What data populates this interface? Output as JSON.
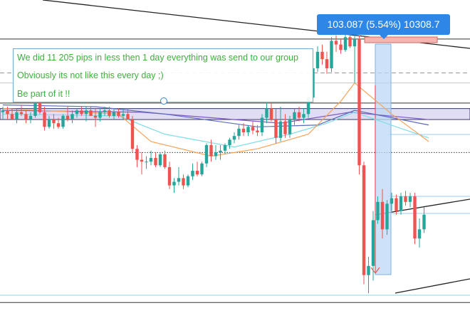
{
  "tooltip": {
    "text": "103.087 (5.54%) 10308.7"
  },
  "annotation": {
    "lines": [
      "We did 11 205 pips in less then 1 day everything was send to our group",
      "Obviously its not like this every day ;)",
      "Be part of it !!"
    ]
  },
  "colors": {
    "bull": "#26a69a",
    "bear": "#ef5350",
    "annotation_text": "#3fae3f",
    "tooltip_bg": "#2e86e6",
    "zone_fill": "#d9d4f0",
    "ma_orange": "#f7a35c",
    "ma_cyan": "#7fdde6",
    "ma_blue": "#5c6bc0",
    "ma_purple": "#7e57c2"
  },
  "chart_data": {
    "type": "candlestick",
    "title": "",
    "xlabel": "",
    "ylabel": "",
    "ylim": [
      -40,
      100
    ],
    "candles": [
      {
        "o": 64,
        "h": 67,
        "l": 60,
        "c": 65
      },
      {
        "o": 65,
        "h": 67,
        "l": 60,
        "c": 63
      },
      {
        "o": 63,
        "h": 66,
        "l": 60,
        "c": 60
      },
      {
        "o": 60,
        "h": 66,
        "l": 58,
        "c": 64
      },
      {
        "o": 64,
        "h": 68,
        "l": 62,
        "c": 63
      },
      {
        "o": 63,
        "h": 65,
        "l": 58,
        "c": 60
      },
      {
        "o": 60,
        "h": 64,
        "l": 58,
        "c": 62
      },
      {
        "o": 62,
        "h": 70,
        "l": 61,
        "c": 69
      },
      {
        "o": 69,
        "h": 72,
        "l": 63,
        "c": 64
      },
      {
        "o": 64,
        "h": 67,
        "l": 54,
        "c": 56
      },
      {
        "o": 56,
        "h": 62,
        "l": 55,
        "c": 60
      },
      {
        "o": 60,
        "h": 63,
        "l": 55,
        "c": 58
      },
      {
        "o": 58,
        "h": 61,
        "l": 55,
        "c": 56
      },
      {
        "o": 56,
        "h": 63,
        "l": 55,
        "c": 62
      },
      {
        "o": 62,
        "h": 67,
        "l": 59,
        "c": 60
      },
      {
        "o": 60,
        "h": 65,
        "l": 58,
        "c": 63
      },
      {
        "o": 63,
        "h": 66,
        "l": 61,
        "c": 65
      },
      {
        "o": 65,
        "h": 67,
        "l": 62,
        "c": 63
      },
      {
        "o": 63,
        "h": 67,
        "l": 59,
        "c": 65
      },
      {
        "o": 65,
        "h": 67,
        "l": 62,
        "c": 62
      },
      {
        "o": 62,
        "h": 66,
        "l": 56,
        "c": 61
      },
      {
        "o": 61,
        "h": 66,
        "l": 59,
        "c": 64
      },
      {
        "o": 64,
        "h": 67,
        "l": 62,
        "c": 65
      },
      {
        "o": 65,
        "h": 67,
        "l": 61,
        "c": 62
      },
      {
        "o": 62,
        "h": 66,
        "l": 60,
        "c": 64
      },
      {
        "o": 64,
        "h": 66,
        "l": 61,
        "c": 62
      },
      {
        "o": 62,
        "h": 66,
        "l": 60,
        "c": 63
      },
      {
        "o": 63,
        "h": 66,
        "l": 60,
        "c": 60
      },
      {
        "o": 60,
        "h": 62,
        "l": 42,
        "c": 44
      },
      {
        "o": 44,
        "h": 46,
        "l": 34,
        "c": 38
      },
      {
        "o": 38,
        "h": 42,
        "l": 30,
        "c": 37
      },
      {
        "o": 37,
        "h": 40,
        "l": 33,
        "c": 37
      },
      {
        "o": 37,
        "h": 43,
        "l": 35,
        "c": 39
      },
      {
        "o": 39,
        "h": 42,
        "l": 34,
        "c": 35
      },
      {
        "o": 35,
        "h": 42,
        "l": 34,
        "c": 41
      },
      {
        "o": 41,
        "h": 43,
        "l": 33,
        "c": 34
      },
      {
        "o": 34,
        "h": 37,
        "l": 22,
        "c": 24
      },
      {
        "o": 24,
        "h": 28,
        "l": 20,
        "c": 26
      },
      {
        "o": 26,
        "h": 34,
        "l": 24,
        "c": 28
      },
      {
        "o": 28,
        "h": 30,
        "l": 22,
        "c": 24
      },
      {
        "o": 24,
        "h": 30,
        "l": 23,
        "c": 29
      },
      {
        "o": 29,
        "h": 36,
        "l": 27,
        "c": 32
      },
      {
        "o": 32,
        "h": 37,
        "l": 29,
        "c": 30
      },
      {
        "o": 30,
        "h": 37,
        "l": 29,
        "c": 36
      },
      {
        "o": 36,
        "h": 47,
        "l": 34,
        "c": 46
      },
      {
        "o": 46,
        "h": 49,
        "l": 37,
        "c": 40
      },
      {
        "o": 40,
        "h": 46,
        "l": 38,
        "c": 42
      },
      {
        "o": 42,
        "h": 46,
        "l": 38,
        "c": 43
      },
      {
        "o": 43,
        "h": 47,
        "l": 41,
        "c": 46
      },
      {
        "o": 46,
        "h": 50,
        "l": 44,
        "c": 49
      },
      {
        "o": 49,
        "h": 53,
        "l": 47,
        "c": 51
      },
      {
        "o": 51,
        "h": 57,
        "l": 49,
        "c": 55
      },
      {
        "o": 55,
        "h": 58,
        "l": 51,
        "c": 53
      },
      {
        "o": 53,
        "h": 57,
        "l": 51,
        "c": 56
      },
      {
        "o": 56,
        "h": 59,
        "l": 52,
        "c": 54
      },
      {
        "o": 54,
        "h": 57,
        "l": 51,
        "c": 53
      },
      {
        "o": 53,
        "h": 63,
        "l": 51,
        "c": 61
      },
      {
        "o": 61,
        "h": 69,
        "l": 58,
        "c": 66
      },
      {
        "o": 66,
        "h": 69,
        "l": 59,
        "c": 60
      },
      {
        "o": 60,
        "h": 66,
        "l": 47,
        "c": 50
      },
      {
        "o": 50,
        "h": 67,
        "l": 48,
        "c": 59
      },
      {
        "o": 59,
        "h": 63,
        "l": 50,
        "c": 52
      },
      {
        "o": 52,
        "h": 62,
        "l": 50,
        "c": 60
      },
      {
        "o": 60,
        "h": 66,
        "l": 57,
        "c": 64
      },
      {
        "o": 64,
        "h": 67,
        "l": 59,
        "c": 61
      },
      {
        "o": 61,
        "h": 66,
        "l": 58,
        "c": 63
      },
      {
        "o": 63,
        "h": 73,
        "l": 61,
        "c": 72
      },
      {
        "o": 72,
        "h": 90,
        "l": 70,
        "c": 88
      },
      {
        "o": 88,
        "h": 100,
        "l": 86,
        "c": 97
      },
      {
        "o": 97,
        "h": 101,
        "l": 90,
        "c": 93
      },
      {
        "o": 93,
        "h": 97,
        "l": 85,
        "c": 88
      },
      {
        "o": 88,
        "h": 105,
        "l": 86,
        "c": 103
      },
      {
        "o": 103,
        "h": 106,
        "l": 97,
        "c": 101
      },
      {
        "o": 101,
        "h": 104,
        "l": 96,
        "c": 98
      },
      {
        "o": 98,
        "h": 107,
        "l": 97,
        "c": 105
      },
      {
        "o": 105,
        "h": 109,
        "l": 99,
        "c": 100
      },
      {
        "o": 100,
        "h": 110,
        "l": 80,
        "c": 104
      },
      {
        "o": 104,
        "h": 106,
        "l": 30,
        "c": 35
      },
      {
        "o": 35,
        "h": 37,
        "l": -30,
        "c": -25
      },
      {
        "o": -25,
        "h": -15,
        "l": -35,
        "c": -20
      },
      {
        "o": -20,
        "h": 10,
        "l": -28,
        "c": 5
      },
      {
        "o": 5,
        "h": 18,
        "l": 3,
        "c": 15
      },
      {
        "o": 15,
        "h": 22,
        "l": -5,
        "c": 0
      },
      {
        "o": 0,
        "h": 16,
        "l": -3,
        "c": 14
      },
      {
        "o": 14,
        "h": 20,
        "l": 10,
        "c": 17
      },
      {
        "o": 17,
        "h": 19,
        "l": 8,
        "c": 10
      },
      {
        "o": 10,
        "h": 20,
        "l": 8,
        "c": 18
      },
      {
        "o": 18,
        "h": 21,
        "l": 13,
        "c": 15
      },
      {
        "o": 15,
        "h": 20,
        "l": 12,
        "c": 18
      },
      {
        "o": 18,
        "h": 20,
        "l": -8,
        "c": -5
      },
      {
        "o": -5,
        "h": 6,
        "l": -10,
        "c": 0
      },
      {
        "o": 0,
        "h": 12,
        "l": -2,
        "c": 8
      }
    ],
    "moving_averages": [
      {
        "color": "#7e57c2",
        "values": [
          [
            0,
            65
          ],
          [
            30,
            64
          ],
          [
            60,
            58
          ],
          [
            75,
            64
          ],
          [
            92,
            60
          ]
        ]
      },
      {
        "color": "#5c6bc0",
        "values": [
          [
            0,
            68
          ],
          [
            20,
            67
          ],
          [
            35,
            63
          ],
          [
            55,
            56
          ],
          [
            68,
            57
          ],
          [
            76,
            65
          ],
          [
            92,
            57
          ]
        ]
      },
      {
        "color": "#7fdde6",
        "values": [
          [
            0,
            63
          ],
          [
            25,
            62
          ],
          [
            35,
            52
          ],
          [
            50,
            45
          ],
          [
            62,
            52
          ],
          [
            70,
            58
          ],
          [
            76,
            64
          ],
          [
            85,
            56
          ],
          [
            92,
            50
          ]
        ]
      },
      {
        "color": "#f7a35c",
        "values": [
          [
            0,
            66
          ],
          [
            25,
            63
          ],
          [
            32,
            48
          ],
          [
            45,
            40
          ],
          [
            55,
            44
          ],
          [
            66,
            52
          ],
          [
            73,
            70
          ],
          [
            76,
            80
          ],
          [
            84,
            63
          ],
          [
            92,
            48
          ]
        ]
      }
    ],
    "horizontal_levels": [
      {
        "y": 104,
        "style": "solid",
        "color": "#333333"
      },
      {
        "y": 85.5,
        "style": "dashed",
        "color": "#999999"
      },
      {
        "y": 80,
        "style": "solid",
        "color": "#c4c4c4"
      },
      {
        "y": 69,
        "style": "solid",
        "color": "#333333"
      },
      {
        "y": 42,
        "style": "dotted",
        "color": "#333333"
      },
      {
        "y": -36,
        "style": "solid",
        "color": "#7fdde6"
      },
      {
        "y": -40,
        "style": "solid",
        "color": "#333333"
      }
    ],
    "zone": {
      "y_top": 66,
      "y_bottom": 60
    }
  }
}
